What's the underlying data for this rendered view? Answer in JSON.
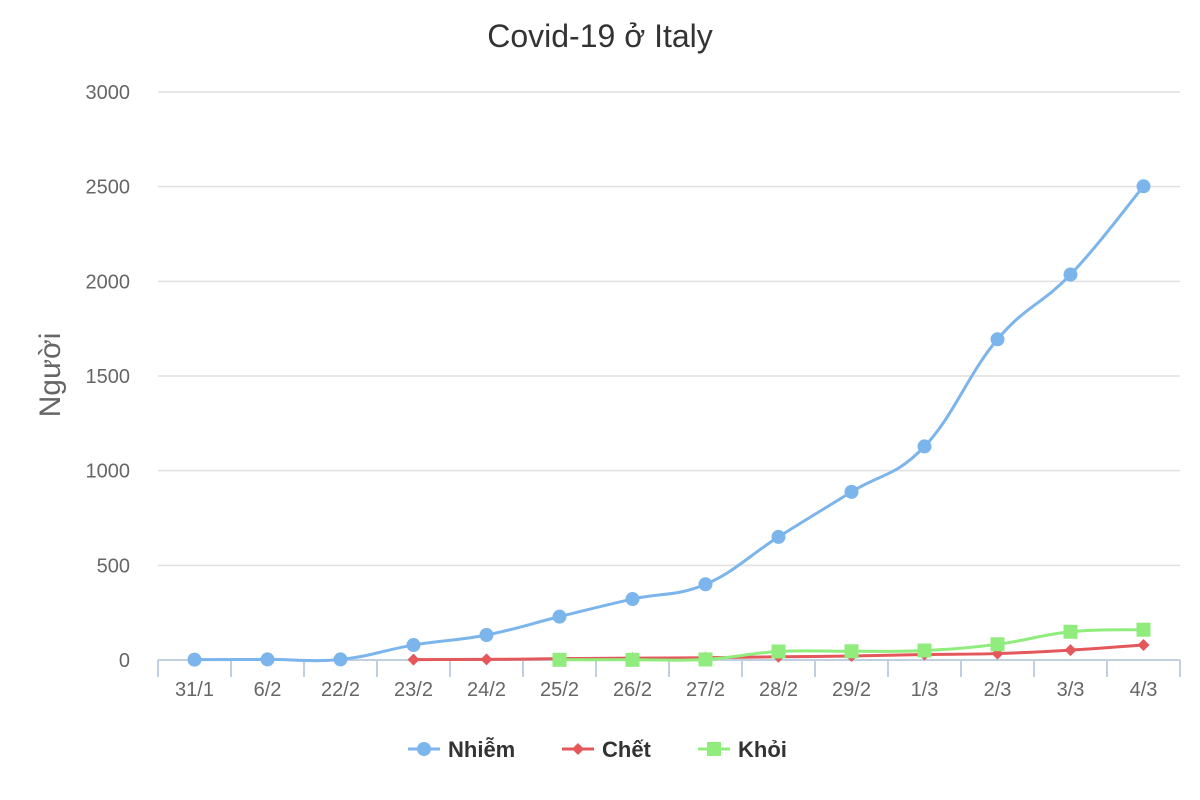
{
  "chart_data": {
    "type": "line",
    "title": "Covid-19 ở Italy",
    "xlabel": "",
    "ylabel": "Người",
    "categories": [
      "31/1",
      "6/2",
      "22/2",
      "23/2",
      "24/2",
      "25/2",
      "26/2",
      "27/2",
      "28/2",
      "29/2",
      "1/3",
      "2/3",
      "3/3",
      "4/3"
    ],
    "ylim": [
      0,
      3000
    ],
    "yticks": [
      0,
      500,
      1000,
      1500,
      2000,
      2500,
      3000
    ],
    "grid": true,
    "legend_position": "bottom",
    "series": [
      {
        "name": "Nhiễm",
        "color": "#7cb5ec",
        "marker": "circle",
        "values": [
          2,
          3,
          3,
          79,
          132,
          229,
          322,
          400,
          650,
          888,
          1128,
          1694,
          2036,
          2502
        ]
      },
      {
        "name": "Chết",
        "color": "#e4575b",
        "marker": "diamond",
        "values": [
          null,
          null,
          null,
          2,
          3,
          7,
          10,
          12,
          17,
          21,
          29,
          34,
          52,
          79
        ]
      },
      {
        "name": "Khỏi",
        "color": "#90ed7d",
        "marker": "square",
        "values": [
          null,
          null,
          null,
          null,
          null,
          1,
          1,
          3,
          45,
          46,
          50,
          83,
          149,
          160
        ]
      }
    ]
  }
}
